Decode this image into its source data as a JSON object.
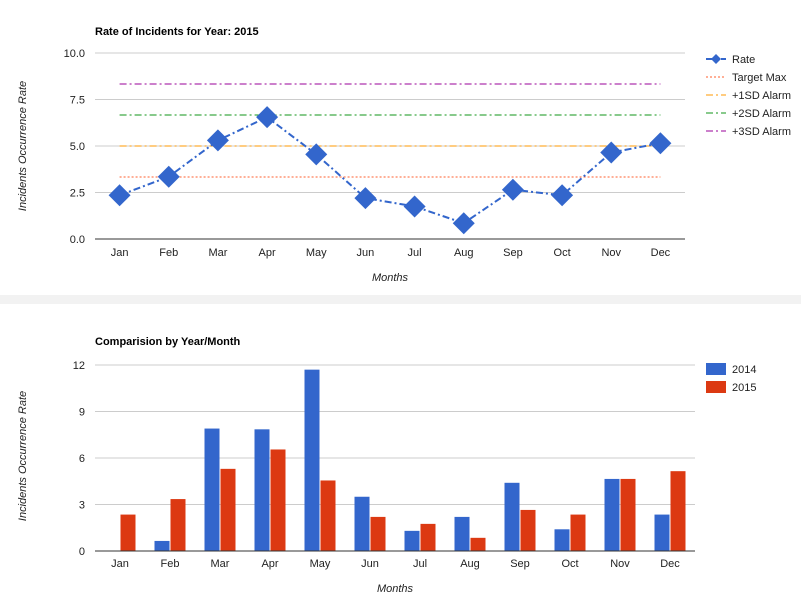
{
  "chart_data": [
    {
      "type": "line",
      "title": "Rate of Incidents for Year: 2015",
      "xlabel": "Months",
      "ylabel": "Incidents Occurrence Rate",
      "categories": [
        "Jan",
        "Feb",
        "Mar",
        "Apr",
        "May",
        "Jun",
        "Jul",
        "Aug",
        "Sep",
        "Oct",
        "Nov",
        "Dec"
      ],
      "ylim": [
        0,
        10
      ],
      "yticks": [
        "0.0",
        "2.5",
        "5.0",
        "7.5",
        "10.0"
      ],
      "grid": true,
      "legend_position": "right",
      "series": [
        {
          "name": "Rate",
          "color": "#3366cc",
          "style": "dash-dot-with-diamonds",
          "values": [
            2.35,
            3.35,
            5.3,
            6.55,
            4.55,
            2.2,
            1.75,
            0.85,
            2.65,
            2.35,
            4.65,
            5.15
          ]
        },
        {
          "name": "Target Max",
          "color": "#ff5f2e",
          "style": "dotted",
          "values": [
            3.33,
            3.33,
            3.33,
            3.33,
            3.33,
            3.33,
            3.33,
            3.33,
            3.33,
            3.33,
            3.33,
            3.33
          ]
        },
        {
          "name": "+1SD Alarm",
          "color": "#ff9900",
          "style": "dash-dot",
          "values": [
            5.0,
            5.0,
            5.0,
            5.0,
            5.0,
            5.0,
            5.0,
            5.0,
            5.0,
            5.0,
            5.0,
            5.0
          ]
        },
        {
          "name": "+2SD Alarm",
          "color": "#109618",
          "style": "dash-dot",
          "values": [
            6.67,
            6.67,
            6.67,
            6.67,
            6.67,
            6.67,
            6.67,
            6.67,
            6.67,
            6.67,
            6.67,
            6.67
          ]
        },
        {
          "name": "+3SD Alarm",
          "color": "#990099",
          "style": "dash-dot",
          "values": [
            8.33,
            8.33,
            8.33,
            8.33,
            8.33,
            8.33,
            8.33,
            8.33,
            8.33,
            8.33,
            8.33,
            8.33
          ]
        }
      ]
    },
    {
      "type": "bar",
      "title": "Comparision by Year/Month",
      "xlabel": "Months",
      "ylabel": "Incidents Occurrence Rate",
      "categories": [
        "Jan",
        "Feb",
        "Mar",
        "Apr",
        "May",
        "Jun",
        "Jul",
        "Aug",
        "Sep",
        "Oct",
        "Nov",
        "Dec"
      ],
      "ylim": [
        0,
        12
      ],
      "yticks": [
        "0",
        "3",
        "6",
        "9",
        "12"
      ],
      "grid": true,
      "legend_position": "right",
      "series": [
        {
          "name": "2014",
          "color": "#3366cc",
          "values": [
            0,
            0.65,
            7.9,
            7.85,
            11.7,
            3.5,
            1.3,
            2.2,
            4.4,
            1.4,
            4.65,
            2.35
          ]
        },
        {
          "name": "2015",
          "color": "#dc3912",
          "values": [
            2.35,
            3.35,
            5.3,
            6.55,
            4.55,
            2.2,
            1.75,
            0.85,
            2.65,
            2.35,
            4.65,
            5.15
          ]
        }
      ]
    }
  ]
}
